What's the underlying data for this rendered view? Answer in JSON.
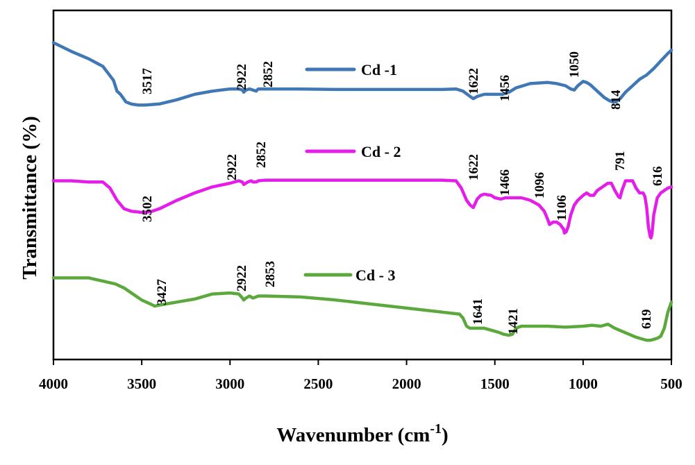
{
  "chart_data": {
    "type": "line",
    "title": "",
    "xlabel": "Wavenumber (cm",
    "xlabel_sup": "-1",
    "xlabel_close": ")",
    "ylabel": "Transmittance (%)",
    "xlim": [
      4000,
      500
    ],
    "x_ticks": [
      4000,
      3500,
      3000,
      2500,
      2000,
      1500,
      1000,
      500
    ],
    "y_ticks_shown": false,
    "grid": false,
    "legend_placement": "inline-top-center",
    "series": [
      {
        "name": "Cd -1",
        "color": "#3f78b4",
        "x": [
          4000,
          3900,
          3800,
          3720,
          3660,
          3640,
          3620,
          3590,
          3560,
          3520,
          3480,
          3400,
          3300,
          3200,
          3100,
          3000,
          2950,
          2930,
          2922,
          2910,
          2890,
          2870,
          2852,
          2840,
          2800,
          2600,
          2400,
          2200,
          2000,
          1800,
          1720,
          1680,
          1640,
          1622,
          1600,
          1580,
          1560,
          1500,
          1456,
          1420,
          1380,
          1300,
          1200,
          1150,
          1100,
          1070,
          1050,
          1030,
          1000,
          980,
          960,
          920,
          880,
          850,
          830,
          814,
          790,
          760,
          720,
          680,
          640,
          600,
          560,
          520,
          500
        ],
        "y": [
          70,
          62,
          55,
          48,
          35,
          25,
          22,
          15,
          13,
          12,
          12,
          13,
          17,
          22,
          25,
          27,
          27,
          26,
          24,
          26,
          27,
          26,
          25,
          27,
          27,
          27,
          26.5,
          26.5,
          26.5,
          26.5,
          27,
          25,
          20,
          18,
          20,
          21,
          22,
          22,
          22,
          24,
          28,
          32,
          33,
          32,
          30,
          27,
          26,
          30,
          34,
          33,
          31,
          25,
          19,
          16,
          15,
          15,
          18,
          24,
          30,
          36,
          40,
          46,
          53,
          60,
          63
        ]
      },
      {
        "name": "Cd - 2",
        "color": "#e31ee8",
        "x": [
          4000,
          3900,
          3800,
          3720,
          3680,
          3640,
          3600,
          3560,
          3502,
          3450,
          3400,
          3300,
          3200,
          3100,
          3000,
          2950,
          2930,
          2922,
          2900,
          2880,
          2870,
          2852,
          2840,
          2800,
          2600,
          2400,
          2200,
          2000,
          1800,
          1720,
          1690,
          1660,
          1640,
          1622,
          1600,
          1580,
          1560,
          1520,
          1500,
          1466,
          1440,
          1400,
          1350,
          1300,
          1250,
          1220,
          1200,
          1190,
          1170,
          1150,
          1130,
          1110,
          1106,
          1096,
          1085,
          1070,
          1050,
          1030,
          1000,
          980,
          960,
          940,
          920,
          880,
          860,
          840,
          820,
          800,
          791,
          780,
          760,
          740,
          720,
          700,
          680,
          660,
          650,
          640,
          630,
          620,
          616,
          610,
          600,
          580,
          560,
          520,
          500
        ],
        "y": [
          58,
          58,
          57,
          57,
          52,
          42,
          35,
          33,
          32,
          32.5,
          35,
          42,
          48,
          53,
          56,
          58,
          57,
          55,
          57,
          58,
          57,
          57,
          58,
          58.5,
          58.5,
          58.5,
          58.5,
          58.5,
          58.5,
          58,
          52,
          42,
          38,
          36,
          43,
          46,
          47,
          46,
          44,
          43,
          44,
          44,
          44,
          42,
          38,
          33,
          26,
          22,
          24,
          24,
          22,
          18,
          15,
          16,
          20,
          30,
          38,
          42,
          46,
          48,
          46,
          46,
          50,
          54,
          56,
          56,
          50,
          45,
          44,
          50,
          58,
          58,
          58,
          52,
          48,
          48,
          45,
          36,
          20,
          12,
          11,
          14,
          30,
          44,
          48,
          52,
          53
        ]
      },
      {
        "name": "Cd - 3",
        "color": "#5ba83c",
        "x": [
          4000,
          3900,
          3800,
          3750,
          3700,
          3650,
          3600,
          3550,
          3500,
          3450,
          3427,
          3400,
          3300,
          3200,
          3100,
          3000,
          2950,
          2930,
          2922,
          2910,
          2890,
          2870,
          2853,
          2840,
          2800,
          2600,
          2400,
          2200,
          2000,
          1800,
          1700,
          1680,
          1660,
          1641,
          1620,
          1600,
          1560,
          1520,
          1480,
          1450,
          1421,
          1400,
          1380,
          1350,
          1300,
          1200,
          1100,
          1000,
          950,
          900,
          880,
          860,
          820,
          780,
          740,
          700,
          660,
          640,
          619,
          600,
          580,
          560,
          540,
          520,
          500
        ],
        "y": [
          24,
          24,
          24,
          23,
          22,
          21,
          19,
          16,
          13,
          11,
          10,
          10.5,
          12,
          13.5,
          16,
          16.5,
          16,
          14,
          13,
          14,
          15,
          14,
          14.5,
          15,
          15,
          14.5,
          13,
          11,
          9,
          7,
          6,
          4,
          0,
          -1,
          -1,
          -1,
          -1,
          -2,
          -3,
          -4,
          -4.5,
          -4,
          -1,
          0,
          0,
          0,
          -0.5,
          0,
          0.5,
          0,
          0.5,
          1,
          -1,
          -2.5,
          -4,
          -5.5,
          -6.5,
          -7,
          -7,
          -6.5,
          -6,
          -5,
          -1,
          7,
          12
        ]
      }
    ],
    "annotations": [
      {
        "text": "3517",
        "series": "Cd -1"
      },
      {
        "text": "2922",
        "series": "Cd -1"
      },
      {
        "text": "2852",
        "series": "Cd -1"
      },
      {
        "text": "1622",
        "series": "Cd -1"
      },
      {
        "text": "1456",
        "series": "Cd -1"
      },
      {
        "text": "1050",
        "series": "Cd -1"
      },
      {
        "text": "814",
        "series": "Cd -1"
      },
      {
        "text": "3502",
        "series": "Cd - 2"
      },
      {
        "text": "2922",
        "series": "Cd - 2"
      },
      {
        "text": "2852",
        "series": "Cd - 2"
      },
      {
        "text": "1622",
        "series": "Cd - 2"
      },
      {
        "text": "1466",
        "series": "Cd - 2"
      },
      {
        "text": "1096",
        "series": "Cd - 2"
      },
      {
        "text": "1106",
        "series": "Cd - 2"
      },
      {
        "text": "791",
        "series": "Cd - 2"
      },
      {
        "text": "616",
        "series": "Cd - 2"
      },
      {
        "text": "3427",
        "series": "Cd - 3"
      },
      {
        "text": "2922",
        "series": "Cd - 3"
      },
      {
        "text": "2853",
        "series": "Cd - 3"
      },
      {
        "text": "1641",
        "series": "Cd - 3"
      },
      {
        "text": "1421",
        "series": "Cd - 3"
      },
      {
        "text": "619",
        "series": "Cd - 3"
      }
    ]
  }
}
